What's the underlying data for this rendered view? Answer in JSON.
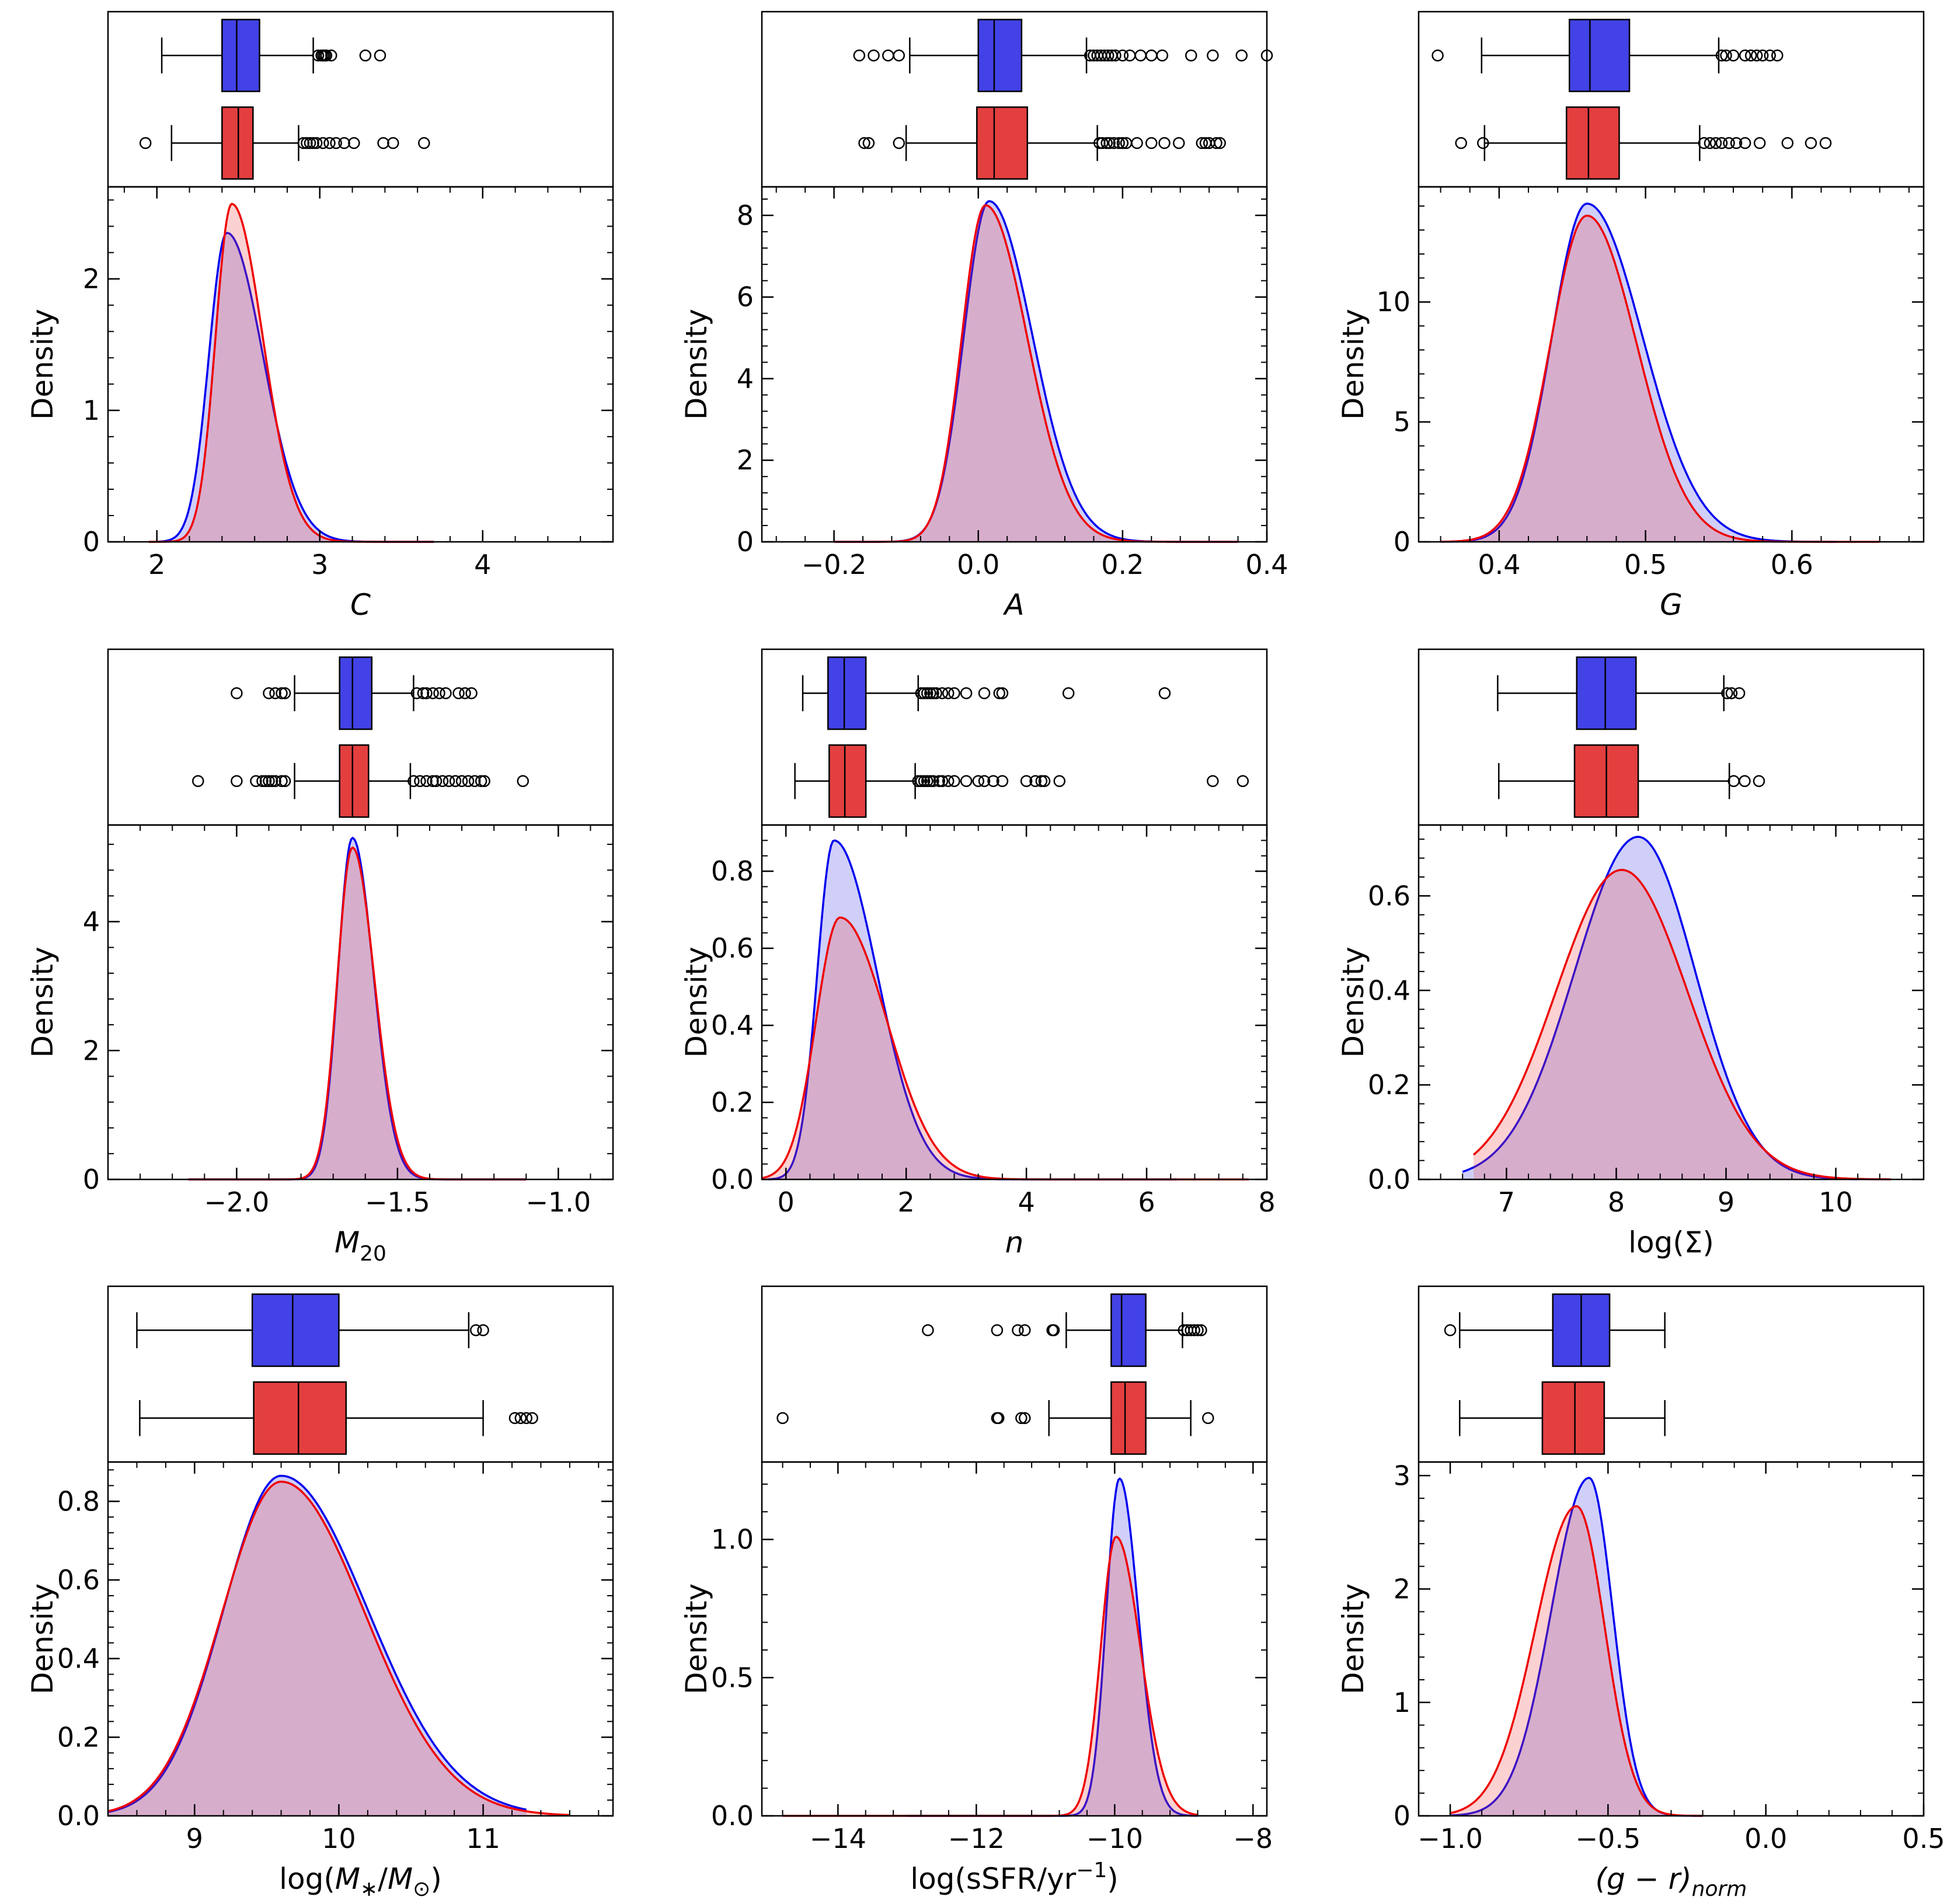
{
  "chart_data": [
    {
      "type": "kde_with_boxplot",
      "xlabel": "C",
      "xlabel_italic": true,
      "ylabel": "Density",
      "xlim": [
        1.7,
        4.8
      ],
      "ylim": [
        0,
        2.7
      ],
      "xticks": [
        2,
        3,
        4
      ],
      "xtick_labels": [
        "2",
        "3",
        "4"
      ],
      "yticks": [
        0,
        1,
        2
      ],
      "ytick_labels": [
        "0",
        "1",
        "2"
      ],
      "series": [
        {
          "color": "#0000ee",
          "peak_x": 2.43,
          "peak_y": 2.35,
          "left_sd": 0.11,
          "right_sd": 0.22,
          "xmin": 2.0,
          "xmax": 3.7,
          "box": {
            "whisker_low": 2.03,
            "q1": 2.4,
            "median": 2.49,
            "q3": 2.63,
            "whisker_high": 2.96,
            "outliers": [
              2.99,
              3.01,
              3.02,
              3.03,
              3.04,
              3.07,
              3.28,
              3.37
            ]
          }
        },
        {
          "color": "#ee0000",
          "peak_x": 2.46,
          "peak_y": 2.57,
          "left_sd": 0.1,
          "right_sd": 0.19,
          "xmin": 1.95,
          "xmax": 3.7,
          "box": {
            "whisker_low": 2.09,
            "q1": 2.4,
            "median": 2.5,
            "q3": 2.59,
            "whisker_high": 2.87,
            "outliers": [
              1.93,
              2.9,
              2.92,
              2.94,
              2.96,
              2.98,
              3.02,
              3.06,
              3.1,
              3.15,
              3.21,
              3.39,
              3.45,
              3.64
            ]
          }
        }
      ]
    },
    {
      "type": "kde_with_boxplot",
      "xlabel": "A",
      "xlabel_italic": true,
      "ylabel": "Density",
      "xlim": [
        -0.3,
        0.4
      ],
      "ylim": [
        0,
        8.7
      ],
      "xticks": [
        -0.2,
        0.0,
        0.2,
        0.4
      ],
      "xtick_labels": [
        "−0.2",
        "0.0",
        "0.2",
        "0.4"
      ],
      "yticks": [
        0,
        2,
        4,
        6,
        8
      ],
      "ytick_labels": [
        "0",
        "2",
        "4",
        "6",
        "8"
      ],
      "series": [
        {
          "color": "#0000ee",
          "peak_x": 0.015,
          "peak_y": 8.35,
          "left_sd": 0.035,
          "right_sd": 0.06,
          "xmin": -0.2,
          "xmax": 0.36,
          "box": {
            "whisker_low": -0.095,
            "q1": 0.0,
            "median": 0.022,
            "q3": 0.06,
            "whisker_high": 0.15,
            "outliers": [
              -0.165,
              -0.145,
              -0.125,
              -0.11,
              0.155,
              0.16,
              0.165,
              0.17,
              0.175,
              0.18,
              0.185,
              0.19,
              0.2,
              0.21,
              0.225,
              0.24,
              0.255,
              0.295,
              0.325,
              0.365,
              0.4
            ]
          }
        },
        {
          "color": "#ee0000",
          "peak_x": 0.01,
          "peak_y": 8.25,
          "left_sd": 0.033,
          "right_sd": 0.058,
          "xmin": -0.2,
          "xmax": 0.36,
          "box": {
            "whisker_low": -0.1,
            "q1": -0.002,
            "median": 0.022,
            "q3": 0.068,
            "whisker_high": 0.165,
            "outliers": [
              -0.158,
              -0.152,
              -0.11,
              0.168,
              0.172,
              0.178,
              0.182,
              0.188,
              0.195,
              0.2,
              0.205,
              0.22,
              0.24,
              0.258,
              0.278,
              0.31,
              0.315,
              0.32,
              0.33,
              0.335
            ]
          }
        }
      ]
    },
    {
      "type": "kde_with_boxplot",
      "xlabel": "G",
      "xlabel_italic": true,
      "ylabel": "Density",
      "xlim": [
        0.345,
        0.69
      ],
      "ylim": [
        0,
        14.8
      ],
      "xticks": [
        0.4,
        0.5,
        0.6
      ],
      "xtick_labels": [
        "0.4",
        "0.5",
        "0.6"
      ],
      "yticks": [
        0,
        5,
        10
      ],
      "ytick_labels": [
        "0",
        "5",
        "10"
      ],
      "series": [
        {
          "color": "#0000ee",
          "peak_x": 0.46,
          "peak_y": 14.1,
          "left_sd": 0.024,
          "right_sd": 0.038,
          "xmin": 0.36,
          "xmax": 0.63,
          "box": {
            "whisker_low": 0.388,
            "q1": 0.448,
            "median": 0.462,
            "q3": 0.489,
            "whisker_high": 0.55,
            "outliers": [
              0.358,
              0.552,
              0.555,
              0.56,
              0.568,
              0.572,
              0.576,
              0.58,
              0.585,
              0.59
            ]
          }
        },
        {
          "color": "#ee0000",
          "peak_x": 0.46,
          "peak_y": 13.6,
          "left_sd": 0.025,
          "right_sd": 0.034,
          "xmin": 0.36,
          "xmax": 0.66,
          "box": {
            "whisker_low": 0.39,
            "q1": 0.446,
            "median": 0.461,
            "q3": 0.482,
            "whisker_high": 0.537,
            "outliers": [
              0.374,
              0.389,
              0.54,
              0.544,
              0.548,
              0.552,
              0.557,
              0.562,
              0.568,
              0.578,
              0.597,
              0.613,
              0.623
            ]
          }
        }
      ]
    },
    {
      "type": "kde_with_boxplot",
      "xlabel": "M₂₀",
      "xlabel_italic": true,
      "ylabel": "Density",
      "xlim": [
        -2.4,
        -0.83
      ],
      "ylim": [
        0,
        5.5
      ],
      "xticks": [
        -2.0,
        -1.5,
        -1.0
      ],
      "xtick_labels": [
        "−2.0",
        "−1.5",
        "−1.0"
      ],
      "yticks": [
        0,
        2,
        4
      ],
      "ytick_labels": [
        "0",
        "2",
        "4"
      ],
      "series": [
        {
          "color": "#0000ee",
          "peak_x": -1.64,
          "peak_y": 5.3,
          "left_sd": 0.045,
          "right_sd": 0.065,
          "xmin": -2.15,
          "xmax": -1.1,
          "box": {
            "whisker_low": -1.82,
            "q1": -1.68,
            "median": -1.64,
            "q3": -1.58,
            "whisker_high": -1.45,
            "outliers": [
              -2.0,
              -1.9,
              -1.88,
              -1.86,
              -1.85,
              -1.44,
              -1.42,
              -1.41,
              -1.39,
              -1.37,
              -1.35,
              -1.31,
              -1.29,
              -1.27
            ]
          }
        },
        {
          "color": "#ee0000",
          "peak_x": -1.64,
          "peak_y": 5.15,
          "left_sd": 0.047,
          "right_sd": 0.068,
          "xmin": -2.15,
          "xmax": -1.1,
          "box": {
            "whisker_low": -1.82,
            "q1": -1.68,
            "median": -1.64,
            "q3": -1.59,
            "whisker_high": -1.46,
            "outliers": [
              -2.12,
              -2.0,
              -1.94,
              -1.92,
              -1.91,
              -1.9,
              -1.89,
              -1.88,
              -1.86,
              -1.85,
              -1.45,
              -1.43,
              -1.41,
              -1.39,
              -1.38,
              -1.36,
              -1.34,
              -1.32,
              -1.3,
              -1.28,
              -1.26,
              -1.24,
              -1.23,
              -1.11
            ]
          }
        }
      ]
    },
    {
      "type": "kde_with_boxplot",
      "xlabel": "n",
      "xlabel_italic": true,
      "ylabel": "Density",
      "xlim": [
        -0.4,
        8
      ],
      "ylim": [
        0,
        0.92
      ],
      "xticks": [
        0,
        2,
        4,
        6,
        8
      ],
      "xtick_labels": [
        "0",
        "2",
        "4",
        "6",
        "8"
      ],
      "yticks": [
        0,
        0.2,
        0.4,
        0.6,
        0.8
      ],
      "ytick_labels": [
        "0.0",
        "0.2",
        "0.4",
        "0.6",
        "0.8"
      ],
      "series": [
        {
          "color": "#0000ee",
          "peak_x": 0.8,
          "peak_y": 0.88,
          "left_sd": 0.28,
          "right_sd": 0.72,
          "xmin": -0.3,
          "xmax": 6.5,
          "box": {
            "whisker_low": 0.28,
            "q1": 0.7,
            "median": 0.97,
            "q3": 1.33,
            "whisker_high": 2.2,
            "outliers": [
              2.25,
              2.3,
              2.35,
              2.4,
              2.45,
              2.5,
              2.6,
              2.7,
              2.8,
              3.0,
              3.3,
              3.55,
              3.6,
              4.7,
              6.3
            ]
          }
        },
        {
          "color": "#ee0000",
          "peak_x": 0.9,
          "peak_y": 0.68,
          "left_sd": 0.4,
          "right_sd": 0.78,
          "xmin": -0.4,
          "xmax": 7.7,
          "box": {
            "whisker_low": 0.15,
            "q1": 0.72,
            "median": 0.98,
            "q3": 1.33,
            "whisker_high": 2.15,
            "outliers": [
              2.2,
              2.25,
              2.3,
              2.35,
              2.4,
              2.45,
              2.55,
              2.6,
              2.7,
              2.8,
              3.0,
              3.2,
              3.3,
              3.45,
              3.6,
              4.0,
              4.15,
              4.25,
              4.3,
              4.55,
              7.1,
              7.6
            ]
          }
        }
      ]
    },
    {
      "type": "kde_with_boxplot",
      "xlabel": "log(Σ)",
      "xlabel_italic": false,
      "ylabel": "Density",
      "xlim": [
        6.2,
        10.8
      ],
      "ylim": [
        0,
        0.75
      ],
      "xticks": [
        7,
        8,
        9,
        10
      ],
      "xtick_labels": [
        "7",
        "8",
        "9",
        "10"
      ],
      "yticks": [
        0,
        0.2,
        0.4,
        0.6
      ],
      "ytick_labels": [
        "0.0",
        "0.2",
        "0.4",
        "0.6"
      ],
      "series": [
        {
          "color": "#0000ee",
          "peak_x": 8.2,
          "peak_y": 0.725,
          "left_sd": 0.58,
          "right_sd": 0.52,
          "xmin": 6.6,
          "xmax": 10.2,
          "box": {
            "whisker_low": 6.92,
            "q1": 7.64,
            "median": 7.9,
            "q3": 8.18,
            "whisker_high": 8.98,
            "outliers": [
              9.01,
              9.05,
              9.12
            ]
          }
        },
        {
          "color": "#ee0000",
          "peak_x": 8.05,
          "peak_y": 0.655,
          "left_sd": 0.6,
          "right_sd": 0.6,
          "xmin": 6.7,
          "xmax": 10.5,
          "box": {
            "whisker_low": 6.93,
            "q1": 7.62,
            "median": 7.91,
            "q3": 8.2,
            "whisker_high": 9.03,
            "outliers": [
              9.07,
              9.17,
              9.3
            ]
          }
        }
      ]
    },
    {
      "type": "kde_with_boxplot",
      "xlabel": "log(M*/M⊙)",
      "xlabel_italic": false,
      "ylabel": "Density",
      "xlim": [
        8.4,
        11.9
      ],
      "ylim": [
        0,
        0.9
      ],
      "xticks": [
        9,
        10,
        11
      ],
      "xtick_labels": [
        "9",
        "10",
        "11"
      ],
      "yticks": [
        0,
        0.2,
        0.4,
        0.6,
        0.8
      ],
      "ytick_labels": [
        "0.0",
        "0.2",
        "0.4",
        "0.6",
        "0.8"
      ],
      "series": [
        {
          "color": "#0000ee",
          "peak_x": 9.6,
          "peak_y": 0.865,
          "left_sd": 0.4,
          "right_sd": 0.6,
          "xmin": 8.4,
          "xmax": 11.3,
          "box": {
            "whisker_low": 8.6,
            "q1": 9.4,
            "median": 9.68,
            "q3": 10.0,
            "whisker_high": 10.9,
            "outliers": [
              10.95,
              11.0
            ]
          }
        },
        {
          "color": "#ee0000",
          "peak_x": 9.6,
          "peak_y": 0.85,
          "left_sd": 0.41,
          "right_sd": 0.58,
          "xmin": 8.4,
          "xmax": 11.6,
          "box": {
            "whisker_low": 8.62,
            "q1": 9.41,
            "median": 9.72,
            "q3": 10.05,
            "whisker_high": 11.0,
            "outliers": [
              11.22,
              11.26,
              11.3,
              11.34
            ]
          }
        }
      ]
    },
    {
      "type": "kde_with_boxplot",
      "xlabel": "log(sSFR/yr⁻¹)",
      "xlabel_italic": false,
      "ylabel": "Density",
      "xlim": [
        -15.1,
        -7.8
      ],
      "ylim": [
        0,
        1.28
      ],
      "xticks": [
        -14,
        -12,
        -10,
        -8
      ],
      "xtick_labels": [
        "−14",
        "−12",
        "−10",
        "−8"
      ],
      "yticks": [
        0,
        0.5,
        1.0
      ],
      "ytick_labels": [
        "0.0",
        "0.5",
        "1.0"
      ],
      "series": [
        {
          "color": "#0000ee",
          "peak_x": -9.93,
          "peak_y": 1.22,
          "left_sd": 0.19,
          "right_sd": 0.27,
          "xmin": -13.0,
          "xmax": -8.8,
          "box": {
            "whisker_low": -10.7,
            "q1": -10.05,
            "median": -9.9,
            "q3": -9.55,
            "whisker_high": -9.02,
            "outliers": [
              -12.7,
              -11.7,
              -11.4,
              -11.3,
              -10.9,
              -10.88,
              -9.0,
              -8.95,
              -8.9,
              -8.85,
              -8.8,
              -8.75
            ]
          }
        },
        {
          "color": "#ee0000",
          "peak_x": -9.98,
          "peak_y": 1.01,
          "left_sd": 0.22,
          "right_sd": 0.35,
          "xmin": -14.8,
          "xmax": -8.8,
          "box": {
            "whisker_low": -10.95,
            "q1": -10.05,
            "median": -9.85,
            "q3": -9.55,
            "whisker_high": -8.9,
            "outliers": [
              -14.8,
              -11.7,
              -11.68,
              -11.35,
              -11.3,
              -8.65
            ]
          }
        }
      ]
    },
    {
      "type": "kde_with_boxplot",
      "xlabel": "(g − r)norm",
      "xlabel_italic": true,
      "ylabel": "Density",
      "xlim": [
        -1.1,
        0.5
      ],
      "ylim": [
        0,
        3.12
      ],
      "xticks": [
        -1.0,
        -0.5,
        0.0,
        0.5
      ],
      "xtick_labels": [
        "−1.0",
        "−0.5",
        "0.0",
        "0.5"
      ],
      "yticks": [
        0,
        1,
        2,
        3
      ],
      "ytick_labels": [
        "0",
        "1",
        "2",
        "3"
      ],
      "series": [
        {
          "color": "#0000ee",
          "peak_x": -0.56,
          "peak_y": 2.98,
          "left_sd": 0.12,
          "right_sd": 0.075,
          "xmin": -1.0,
          "xmax": -0.2,
          "box": {
            "whisker_low": -0.97,
            "q1": -0.675,
            "median": -0.585,
            "q3": -0.495,
            "whisker_high": -0.32,
            "outliers": [
              -1.0
            ]
          }
        },
        {
          "color": "#ee0000",
          "peak_x": -0.6,
          "peak_y": 2.73,
          "left_sd": 0.13,
          "right_sd": 0.09,
          "xmin": -1.0,
          "xmax": -0.2,
          "box": {
            "whisker_low": -0.97,
            "q1": -0.708,
            "median": -0.605,
            "q3": -0.512,
            "whisker_high": -0.32,
            "outliers": []
          }
        }
      ]
    }
  ]
}
